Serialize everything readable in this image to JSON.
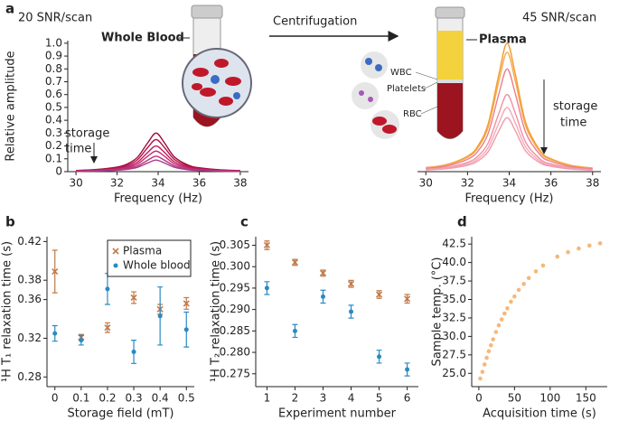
{
  "figure": {
    "panel_labels": [
      "a",
      "b",
      "c",
      "d"
    ],
    "illustration": {
      "left_snr": "20 SNR/scan",
      "right_snr": "45 SNR/scan",
      "whole_blood": "Whole Blood",
      "centrifugation": "Centrifugation",
      "plasma": "Plasma",
      "wbc": "WBC",
      "platelets": "Platelets",
      "rbc": "RBC",
      "storage_time_left": [
        "storage",
        "time"
      ],
      "storage_time_right": [
        "storage",
        "time"
      ]
    }
  },
  "chart_data": [
    {
      "type": "line",
      "xlabel": "Frequency (Hz)",
      "ylabel": "Relative amplitude",
      "x": [
        30,
        31,
        32,
        32.5,
        33,
        33.5,
        33.9,
        34.3,
        34.8,
        35.5,
        36,
        37,
        38
      ],
      "series": [
        {
          "color": "#9e0d3b",
          "values": [
            0.009,
            0.017,
            0.036,
            0.06,
            0.113,
            0.226,
            0.3,
            0.226,
            0.113,
            0.048,
            0.03,
            0.014,
            0.008
          ]
        },
        {
          "color": "#b3144c",
          "values": [
            0.008,
            0.014,
            0.03,
            0.05,
            0.094,
            0.189,
            0.25,
            0.189,
            0.094,
            0.04,
            0.025,
            0.012,
            0.007
          ]
        },
        {
          "color": "#c01f5e",
          "values": [
            0.006,
            0.011,
            0.024,
            0.04,
            0.075,
            0.151,
            0.2,
            0.151,
            0.075,
            0.032,
            0.02,
            0.01,
            0.006
          ]
        },
        {
          "color": "#c62a73",
          "values": [
            0.005,
            0.009,
            0.019,
            0.032,
            0.06,
            0.121,
            0.16,
            0.121,
            0.06,
            0.026,
            0.016,
            0.008,
            0.004
          ]
        },
        {
          "color": "#b8347f",
          "values": [
            0.004,
            0.007,
            0.014,
            0.024,
            0.045,
            0.09,
            0.12,
            0.09,
            0.045,
            0.019,
            0.012,
            0.006,
            0.003
          ]
        },
        {
          "color": "#a63d8a",
          "values": [
            0.003,
            0.005,
            0.011,
            0.018,
            0.034,
            0.068,
            0.09,
            0.068,
            0.034,
            0.014,
            0.009,
            0.004,
            0.003
          ]
        }
      ],
      "xlim": [
        29.6,
        38.4
      ],
      "xticks": [
        30,
        32,
        34,
        36,
        38
      ],
      "ylim": [
        0,
        1.02
      ],
      "yticks": [
        0,
        0.1,
        0.2,
        0.3,
        0.4,
        0.5,
        0.6,
        0.7,
        0.8,
        0.9,
        {
          "value": 1,
          "label": "1.0"
        }
      ]
    },
    {
      "type": "line",
      "xlabel": "Frequency (Hz)",
      "x": [
        30,
        31,
        32,
        32.5,
        33,
        33.5,
        33.9,
        34.3,
        34.8,
        35.5,
        36,
        37,
        38
      ],
      "series": [
        {
          "color": "#f29a2e",
          "values": [
            0.031,
            0.055,
            0.12,
            0.2,
            0.377,
            0.754,
            1,
            0.754,
            0.377,
            0.16,
            0.1,
            0.048,
            0.028
          ]
        },
        {
          "color": "#f4aa4c",
          "values": [
            0.029,
            0.051,
            0.112,
            0.186,
            0.351,
            0.701,
            0.93,
            0.701,
            0.351,
            0.149,
            0.093,
            0.045,
            0.026
          ]
        },
        {
          "color": "#ee7d8c",
          "values": [
            0.025,
            0.044,
            0.096,
            0.16,
            0.302,
            0.603,
            0.8,
            0.603,
            0.302,
            0.128,
            0.08,
            0.038,
            0.022
          ]
        },
        {
          "color": "#f090a2",
          "values": [
            0.019,
            0.033,
            0.072,
            0.12,
            0.226,
            0.452,
            0.6,
            0.452,
            0.226,
            0.096,
            0.06,
            0.029,
            0.017
          ]
        },
        {
          "color": "#f4aab6",
          "values": [
            0.016,
            0.028,
            0.06,
            0.1,
            0.189,
            0.377,
            0.5,
            0.377,
            0.189,
            0.08,
            0.05,
            0.024,
            0.014
          ]
        },
        {
          "color": "#f09aac",
          "values": [
            0.013,
            0.023,
            0.05,
            0.084,
            0.158,
            0.317,
            0.42,
            0.317,
            0.158,
            0.067,
            0.042,
            0.02,
            0.012
          ]
        }
      ],
      "xlim": [
        29.6,
        38.4
      ],
      "xticks": [
        30,
        32,
        34,
        36,
        38
      ],
      "ylim": [
        0,
        1.02
      ]
    },
    {
      "type": "scatter",
      "xlabel": "Storage field (mT)",
      "ylabel": "¹H T₁ relaxation time (s)",
      "x": [
        0,
        0.1,
        0.2,
        0.3,
        0.4,
        0.5
      ],
      "series": [
        {
          "name": "Plasma",
          "color": "#c07a4a",
          "marker": "x",
          "values": [
            0.389,
            0.321,
            0.331,
            0.362,
            0.35,
            0.356
          ],
          "errors": [
            0.022,
            0.003,
            0.005,
            0.006,
            0.005,
            0.006
          ]
        },
        {
          "name": "Whole blood",
          "color": "#2a8ac4",
          "marker": "o",
          "values": [
            0.325,
            0.318,
            0.371,
            0.306,
            0.343,
            0.329
          ],
          "errors": [
            0.008,
            0.005,
            0.016,
            0.012,
            0.03,
            0.018
          ]
        }
      ],
      "xlim": [
        -0.03,
        0.53
      ],
      "xticks": [
        0,
        0.1,
        0.2,
        0.3,
        0.4,
        0.5
      ],
      "ylim": [
        0.27,
        0.425
      ],
      "yticks": [
        0.28,
        0.32,
        0.36,
        0.38,
        0.42
      ],
      "legend": "upper right"
    },
    {
      "type": "scatter",
      "xlabel": "Experiment number",
      "ylabel": "¹H T₂ relaxation time (s)",
      "x": [
        1,
        2,
        3,
        4,
        5,
        6
      ],
      "series": [
        {
          "name": "Plasma",
          "color": "#c07a4a",
          "marker": "x",
          "values": [
            0.305,
            0.301,
            0.2985,
            0.296,
            0.2935,
            0.2925
          ],
          "errors": [
            0.001,
            0.0007,
            0.0007,
            0.0008,
            0.0009,
            0.001
          ]
        },
        {
          "name": "Whole blood",
          "color": "#2a8ac4",
          "marker": "o",
          "values": [
            0.295,
            0.285,
            0.293,
            0.2895,
            0.279,
            0.276
          ],
          "errors": [
            0.0015,
            0.0015,
            0.0015,
            0.0015,
            0.0015,
            0.0015
          ]
        }
      ],
      "xlim": [
        0.6,
        6.4
      ],
      "xticks": [
        1,
        2,
        3,
        4,
        5,
        6
      ],
      "ylim": [
        0.272,
        0.307
      ],
      "yticks": [
        0.275,
        {
          "value": 0.28,
          "label": "0.280"
        },
        0.285,
        {
          "value": 0.29,
          "label": "0.290"
        },
        0.295,
        {
          "value": 0.3,
          "label": "0.300"
        },
        0.305
      ]
    },
    {
      "type": "scatter",
      "xlabel": "Acquisition time (s)",
      "ylabel": "Sample temp. (°C)",
      "x": [
        2,
        5,
        8,
        11,
        14,
        17,
        20,
        24,
        28,
        32,
        36,
        40,
        45,
        50,
        56,
        63,
        70,
        80,
        90,
        110,
        125,
        140,
        155,
        170
      ],
      "series": [
        {
          "color": "#f5b87a",
          "marker": "o",
          "values": [
            24.3,
            25.2,
            26.2,
            27.1,
            28.0,
            28.8,
            29.6,
            30.6,
            31.5,
            32.3,
            33.1,
            33.8,
            34.7,
            35.4,
            36.3,
            37.1,
            37.9,
            38.8,
            39.6,
            40.8,
            41.4,
            41.9,
            42.3,
            42.6
          ]
        }
      ],
      "xlim": [
        -10,
        180
      ],
      "xticks": [
        0,
        50,
        100,
        150
      ],
      "ylim": [
        23.2,
        43.5
      ],
      "yticks": [
        {
          "value": 25,
          "label": "25.0"
        },
        27.5,
        {
          "value": 30,
          "label": "30.0"
        },
        32.5,
        {
          "value": 35,
          "label": "35.0"
        },
        37.5,
        {
          "value": 40,
          "label": "40.0"
        },
        42.5
      ]
    }
  ]
}
